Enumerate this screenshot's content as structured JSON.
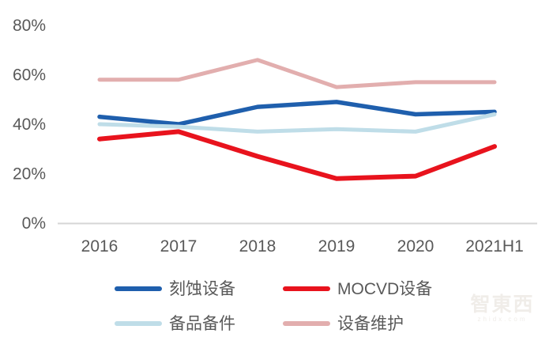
{
  "figure": {
    "watermark": {
      "text": "智東西",
      "subtext": "zhidx.com"
    }
  },
  "chart_data": {
    "type": "line",
    "title": "",
    "xlabel": "",
    "ylabel": "",
    "categories": [
      "2016",
      "2017",
      "2018",
      "2019",
      "2020",
      "2021H1"
    ],
    "series": [
      {
        "name": "刻蚀设备",
        "color": "#1F5FAD",
        "values": [
          43,
          40,
          47,
          49,
          44,
          45
        ]
      },
      {
        "name": "MOCVD设备",
        "color": "#E8131D",
        "values": [
          34,
          37,
          27,
          18,
          19,
          31
        ]
      },
      {
        "name": "备品备件",
        "color": "#BFDDE8",
        "values": [
          40,
          39,
          37,
          38,
          37,
          44
        ]
      },
      {
        "name": "设备维护",
        "color": "#E2AEAE",
        "values": [
          58,
          58,
          66,
          55,
          57,
          57
        ]
      }
    ],
    "unit": "%",
    "ylim": [
      0,
      80
    ],
    "ytick_values": [
      80,
      60,
      40,
      20,
      0
    ],
    "yticks": [
      "80%",
      "60%",
      "40%",
      "20%",
      "0%"
    ],
    "grid": false,
    "legend_position": "bottom",
    "axis_color": "#D6D6D6",
    "label_color": "#595959"
  }
}
